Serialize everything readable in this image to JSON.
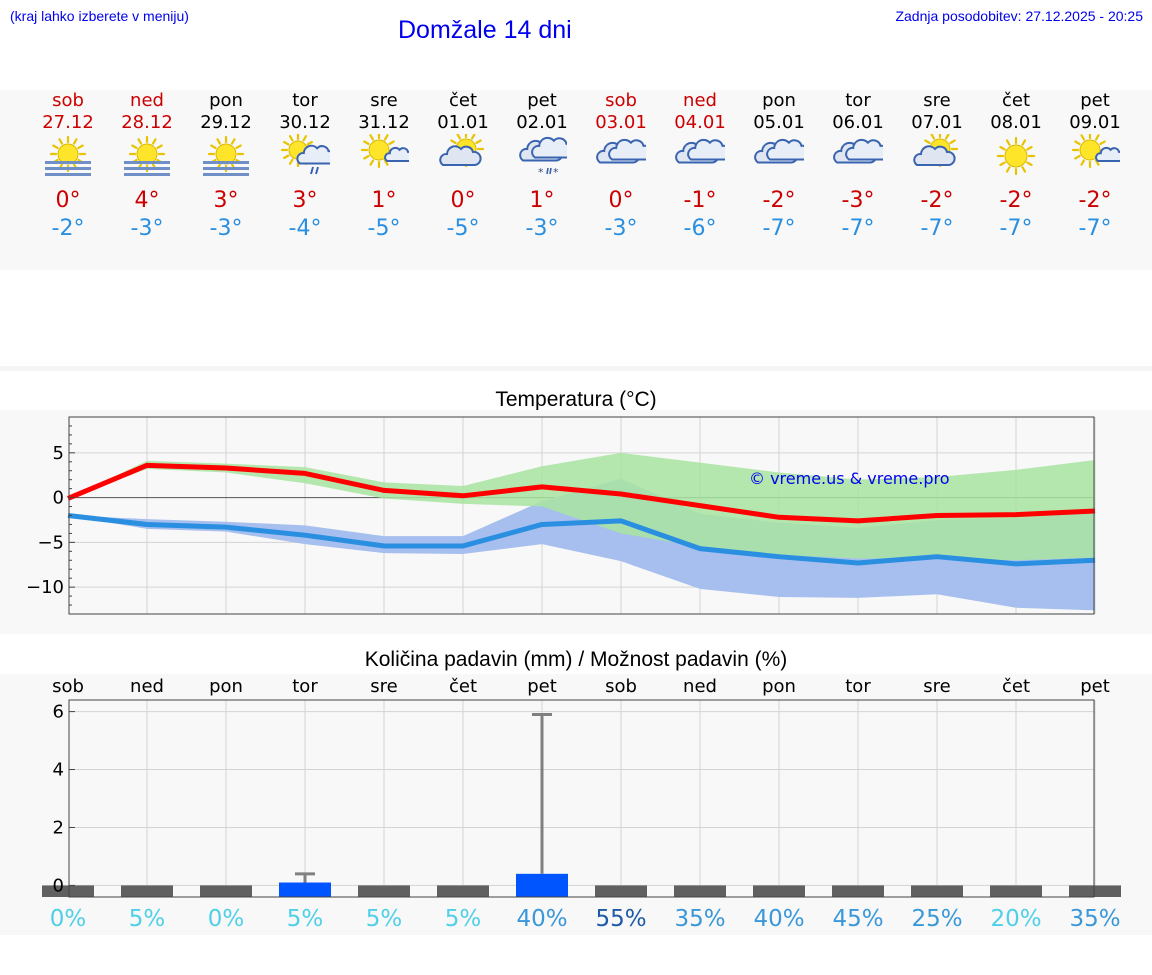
{
  "header": {
    "note": "(kraj lahko izberete v meniju)",
    "title": "Domžale 14 dni",
    "updated": "Zadnja posodobitev: 27.12.2025 - 20:25"
  },
  "colors": {
    "link": "#0000ee",
    "weekend": "#cc0000",
    "max_line": "#ff0000",
    "min_line": "#2a8fe0",
    "max_band": "#a8e4a0",
    "min_band": "#a6bfee",
    "overlap_band": "#7ec3a6",
    "precip_bar": "#0055ff",
    "precip_whisker": "#808080"
  },
  "days": [
    {
      "name": "sob",
      "date": "27.12",
      "weekend": true,
      "icon": "sun-fog-icon",
      "tmax": "0°",
      "tmin": "-2°"
    },
    {
      "name": "ned",
      "date": "28.12",
      "weekend": true,
      "icon": "sun-fog-icon",
      "tmax": "4°",
      "tmin": "-3°"
    },
    {
      "name": "pon",
      "date": "29.12",
      "weekend": false,
      "icon": "sun-fog-icon",
      "tmax": "3°",
      "tmin": "-3°"
    },
    {
      "name": "tor",
      "date": "30.12",
      "weekend": false,
      "icon": "sun-cloud-rain-icon",
      "tmax": "3°",
      "tmin": "-4°"
    },
    {
      "name": "sre",
      "date": "31.12",
      "weekend": false,
      "icon": "sun-small-cloud-icon",
      "tmax": "1°",
      "tmin": "-5°"
    },
    {
      "name": "čet",
      "date": "01.01",
      "weekend": false,
      "icon": "cloud-sun-icon",
      "tmax": "0°",
      "tmin": "-5°"
    },
    {
      "name": "pet",
      "date": "02.01",
      "weekend": false,
      "icon": "cloud-sleet-icon",
      "tmax": "1°",
      "tmin": "-3°"
    },
    {
      "name": "sob",
      "date": "03.01",
      "weekend": true,
      "icon": "cloud-icon",
      "tmax": "0°",
      "tmin": "-3°"
    },
    {
      "name": "ned",
      "date": "04.01",
      "weekend": true,
      "icon": "cloud-icon",
      "tmax": "-1°",
      "tmin": "-6°"
    },
    {
      "name": "pon",
      "date": "05.01",
      "weekend": false,
      "icon": "cloud-icon",
      "tmax": "-2°",
      "tmin": "-7°"
    },
    {
      "name": "tor",
      "date": "06.01",
      "weekend": false,
      "icon": "cloud-icon",
      "tmax": "-3°",
      "tmin": "-7°"
    },
    {
      "name": "sre",
      "date": "07.01",
      "weekend": false,
      "icon": "cloud-sun-icon",
      "tmax": "-2°",
      "tmin": "-7°"
    },
    {
      "name": "čet",
      "date": "08.01",
      "weekend": false,
      "icon": "sun-icon",
      "tmax": "-2°",
      "tmin": "-7°"
    },
    {
      "name": "pet",
      "date": "09.01",
      "weekend": false,
      "icon": "sun-small-cloud-icon",
      "tmax": "-2°",
      "tmin": "-7°"
    }
  ],
  "chart_data": [
    {
      "type": "line",
      "title": "Temperatura (°C)",
      "watermark": "© vreme.us & vreme.pro",
      "ylim": [
        -13,
        9
      ],
      "yticks": [
        5,
        0,
        -5,
        -10
      ],
      "ytick_labels": [
        "5",
        "0",
        "−5",
        "−10"
      ],
      "grid": true,
      "x": [
        0,
        1,
        2,
        3,
        4,
        5,
        6,
        7,
        8,
        9,
        10,
        11,
        12,
        13
      ],
      "series": [
        {
          "values": [
            -0.1,
            3.6,
            3.3,
            2.7,
            0.8,
            0.2,
            1.2,
            0.4,
            -0.9,
            -2.2,
            -2.6,
            -2.0,
            -1.9,
            -1.5
          ]
        },
        {
          "values": [
            -2.0,
            -3.0,
            -3.3,
            -4.2,
            -5.4,
            -5.4,
            -3.0,
            -2.6,
            -5.7,
            -6.6,
            -7.3,
            -6.6,
            -7.4,
            -7.0
          ]
        }
      ],
      "bands": [
        {
          "lower": [
            -0.1,
            3.2,
            2.8,
            1.6,
            -0.1,
            -0.7,
            -1.0,
            -4.0,
            -5.5,
            -6.4,
            -6.8,
            -6.8,
            -7.0,
            -6.7
          ],
          "upper": [
            -0.1,
            4.1,
            3.8,
            3.4,
            1.7,
            1.3,
            3.5,
            5.0,
            3.9,
            2.8,
            2.0,
            2.3,
            3.1,
            4.2
          ]
        },
        {
          "lower": [
            -2.0,
            -3.5,
            -3.8,
            -5.2,
            -6.2,
            -6.3,
            -5.2,
            -7.1,
            -10.2,
            -11.1,
            -11.2,
            -10.8,
            -12.3,
            -12.6
          ],
          "upper": [
            -2.0,
            -2.4,
            -2.7,
            -3.1,
            -4.3,
            -4.3,
            -0.4,
            2.1,
            -1.8,
            -2.8,
            -3.4,
            -2.5,
            -2.3,
            -1.7
          ]
        }
      ]
    },
    {
      "type": "bar",
      "title": "Količina padavin (mm) / Možnost padavin (%)",
      "categories": [
        "sob",
        "ned",
        "pon",
        "tor",
        "sre",
        "čet",
        "pet",
        "sob",
        "ned",
        "pon",
        "tor",
        "sre",
        "čet",
        "pet"
      ],
      "values": [
        0,
        0,
        0,
        0.1,
        0,
        0,
        0.4,
        0,
        0,
        0,
        0,
        0,
        0,
        0
      ],
      "error_high": [
        0,
        0,
        0,
        0.4,
        0,
        0,
        5.9,
        0,
        0,
        0,
        0,
        0,
        0,
        0
      ],
      "probability_labels": [
        "0%",
        "5%",
        "0%",
        "5%",
        "5%",
        "5%",
        "40%",
        "55%",
        "35%",
        "40%",
        "45%",
        "25%",
        "20%",
        "35%"
      ],
      "probability": [
        0,
        5,
        0,
        5,
        5,
        5,
        40,
        55,
        35,
        40,
        45,
        25,
        20,
        35
      ],
      "ylim": [
        -0.4,
        6.4
      ],
      "yticks": [
        0,
        2,
        4,
        6
      ],
      "ytick_labels": [
        "0",
        "2",
        "4",
        "6"
      ],
      "grid": true
    }
  ]
}
